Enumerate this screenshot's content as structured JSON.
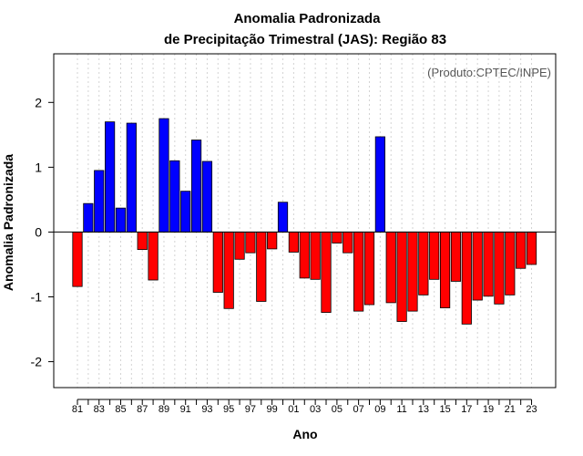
{
  "chart_data": {
    "type": "bar",
    "title": "Anomalia Padronizada",
    "subtitle": "de Precipitação Trimestral (JAS): Região 83",
    "xlabel": "Ano",
    "ylabel": "Anomalia Padronizada",
    "annotation": "(Produto:CPTEC/INPE)",
    "ylim": [
      -2.4,
      2.75
    ],
    "yticks": [
      -2,
      -1,
      0,
      1,
      2
    ],
    "xticks": [
      "81",
      "83",
      "85",
      "87",
      "89",
      "91",
      "93",
      "95",
      "97",
      "99",
      "01",
      "03",
      "05",
      "07",
      "09",
      "11",
      "13",
      "15",
      "17",
      "19",
      "21",
      "23"
    ],
    "categories": [
      "1981",
      "1982",
      "1983",
      "1984",
      "1985",
      "1986",
      "1987",
      "1988",
      "1989",
      "1990",
      "1991",
      "1992",
      "1993",
      "1994",
      "1995",
      "1996",
      "1997",
      "1998",
      "1999",
      "2000",
      "2001",
      "2002",
      "2003",
      "2004",
      "2005",
      "2006",
      "2007",
      "2008",
      "2009",
      "2010",
      "2011",
      "2012",
      "2013",
      "2014",
      "2015",
      "2016",
      "2017",
      "2018",
      "2019",
      "2020",
      "2021",
      "2022",
      "2023"
    ],
    "values": [
      -0.84,
      0.44,
      0.95,
      1.7,
      0.37,
      1.68,
      -0.27,
      -0.74,
      1.75,
      1.1,
      0.63,
      1.42,
      1.09,
      -0.93,
      -1.18,
      -0.42,
      -0.32,
      -1.07,
      -0.26,
      0.46,
      -0.31,
      -0.71,
      -0.73,
      -1.24,
      -0.17,
      -0.32,
      -1.22,
      -1.12,
      1.47,
      -1.09,
      -1.38,
      -1.22,
      -0.97,
      -0.73,
      -1.17,
      -0.76,
      -1.42,
      -1.05,
      -0.99,
      -1.11,
      -0.97,
      -0.56,
      -0.5
    ],
    "colors": {
      "positive": "#0000ff",
      "negative": "#ff0000",
      "grid": "#d3d3d3"
    },
    "grid": true
  }
}
